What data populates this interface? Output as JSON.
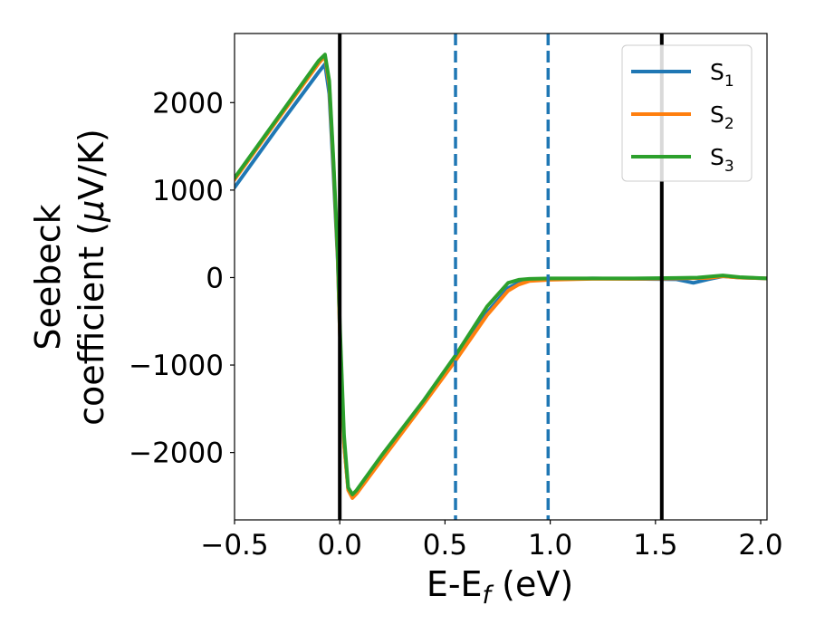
{
  "chart_data": {
    "type": "line",
    "xlabel": {
      "main": "E-E",
      "sub": "f",
      "unit": " (eV)"
    },
    "ylabel": {
      "line1": "Seebeck",
      "line2_prefix": "coefficient  (",
      "mu": "μ",
      "line2_suffix": "V/K)"
    },
    "xlim": [
      -0.5,
      2.03
    ],
    "ylim": [
      -2770,
      2790
    ],
    "xticks": [
      -0.5,
      0.0,
      0.5,
      1.0,
      1.5,
      2.0
    ],
    "xtick_labels": [
      "−0.5",
      "0.0",
      "0.5",
      "1.0",
      "1.5",
      "2.0"
    ],
    "yticks": [
      -2000,
      -1000,
      0,
      1000,
      2000
    ],
    "ytick_labels": [
      "−2000",
      "−1000",
      "0",
      "1000",
      "2000"
    ],
    "grid": false,
    "legend_position": "top-right",
    "vlines": [
      {
        "x": 0.0,
        "color": "#000000",
        "style": "solid"
      },
      {
        "x": 1.53,
        "color": "#000000",
        "style": "solid"
      },
      {
        "x": 0.55,
        "color": "#1f77b4",
        "style": "dashed"
      },
      {
        "x": 0.99,
        "color": "#1f77b4",
        "style": "dashed"
      }
    ],
    "series": [
      {
        "name": "S",
        "sub": "1",
        "color": "#1f77b4",
        "x": [
          -0.5,
          -0.3,
          -0.1,
          -0.07,
          -0.05,
          -0.03,
          -0.01,
          0.0,
          0.02,
          0.04,
          0.06,
          0.08,
          0.2,
          0.4,
          0.55,
          0.7,
          0.8,
          0.85,
          0.9,
          1.0,
          1.2,
          1.4,
          1.6,
          1.68,
          1.75,
          1.82,
          1.9,
          2.03
        ],
        "y": [
          1030,
          1700,
          2350,
          2440,
          2100,
          1200,
          200,
          -600,
          -1900,
          -2420,
          -2500,
          -2450,
          -2050,
          -1420,
          -930,
          -400,
          -120,
          -60,
          -30,
          -20,
          -10,
          -15,
          -20,
          -60,
          -20,
          15,
          0,
          -10
        ]
      },
      {
        "name": "S",
        "sub": "2",
        "color": "#ff7f0e",
        "x": [
          -0.5,
          -0.3,
          -0.1,
          -0.07,
          -0.05,
          -0.03,
          -0.01,
          0.0,
          0.02,
          0.04,
          0.06,
          0.08,
          0.2,
          0.4,
          0.55,
          0.7,
          0.8,
          0.85,
          0.9,
          1.0,
          1.2,
          1.4,
          1.6,
          1.75,
          1.82,
          1.9,
          2.03
        ],
        "y": [
          1120,
          1790,
          2450,
          2530,
          2200,
          1300,
          250,
          -600,
          -1900,
          -2430,
          -2520,
          -2470,
          -2080,
          -1440,
          -950,
          -430,
          -150,
          -80,
          -40,
          -25,
          -15,
          -15,
          -10,
          -5,
          15,
          0,
          -10
        ]
      },
      {
        "name": "S",
        "sub": "3",
        "color": "#2ca02c",
        "x": [
          -0.5,
          -0.3,
          -0.1,
          -0.07,
          -0.05,
          -0.03,
          -0.01,
          0.0,
          0.02,
          0.04,
          0.06,
          0.08,
          0.2,
          0.4,
          0.55,
          0.7,
          0.8,
          0.85,
          0.9,
          1.0,
          1.2,
          1.4,
          1.6,
          1.7,
          1.82,
          1.9,
          2.03
        ],
        "y": [
          1140,
          1810,
          2480,
          2550,
          2250,
          1350,
          300,
          -500,
          -1800,
          -2400,
          -2480,
          -2430,
          -2030,
          -1400,
          -890,
          -330,
          -60,
          -25,
          -15,
          -10,
          -10,
          -10,
          -5,
          0,
          25,
          5,
          -10
        ]
      }
    ]
  }
}
